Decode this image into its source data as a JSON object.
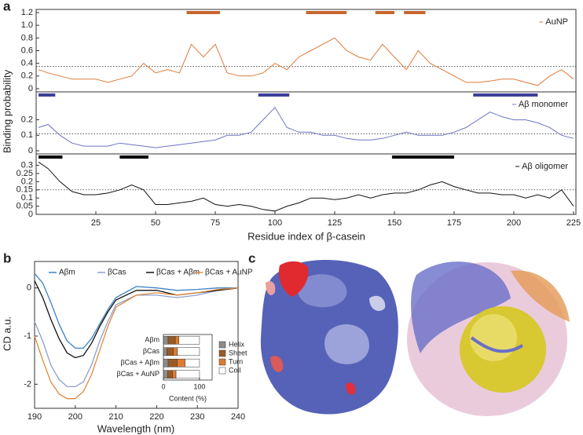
{
  "panel_labels": [
    "a",
    "b",
    "c"
  ],
  "chart_data": [
    {
      "type": "line",
      "ylabel": "Binding probability",
      "x": [
        1,
        5,
        10,
        15,
        20,
        25,
        30,
        35,
        40,
        45,
        50,
        55,
        60,
        65,
        70,
        75,
        80,
        85,
        90,
        95,
        100,
        105,
        110,
        115,
        120,
        125,
        130,
        135,
        140,
        145,
        150,
        155,
        160,
        165,
        170,
        175,
        180,
        185,
        190,
        195,
        200,
        205,
        210,
        215,
        220,
        225
      ],
      "series": [
        {
          "name": "AuNP",
          "color": "#e07b3c",
          "values": [
            0.3,
            0.25,
            0.2,
            0.15,
            0.15,
            0.15,
            0.1,
            0.15,
            0.2,
            0.4,
            0.25,
            0.3,
            0.25,
            0.7,
            0.5,
            0.7,
            0.25,
            0.2,
            0.2,
            0.25,
            0.4,
            0.3,
            0.5,
            0.6,
            0.7,
            0.8,
            0.6,
            0.5,
            0.45,
            0.7,
            0.5,
            0.3,
            0.6,
            0.4,
            0.3,
            0.2,
            0.1,
            0.1,
            0.12,
            0.15,
            0.15,
            0.1,
            0.05,
            0.2,
            0.3,
            0.15
          ]
        }
      ],
      "threshold": 0.35,
      "highlight_color": "#c8652e",
      "highlight_ranges": [
        [
          63,
          77
        ],
        [
          113,
          130
        ],
        [
          142,
          150
        ],
        [
          154,
          163
        ]
      ],
      "xlim": [
        0,
        226
      ],
      "ylim": [
        -0.05,
        1.25
      ],
      "yticks": [
        0,
        0.2,
        0.4,
        0.6,
        0.8,
        {
          "value": 1,
          "label": "1.0"
        },
        1.2
      ]
    },
    {
      "type": "line",
      "x": [
        1,
        5,
        10,
        15,
        20,
        25,
        30,
        35,
        40,
        45,
        50,
        55,
        60,
        65,
        70,
        75,
        80,
        85,
        90,
        95,
        100,
        105,
        110,
        115,
        120,
        125,
        130,
        135,
        140,
        145,
        150,
        155,
        160,
        165,
        170,
        175,
        180,
        185,
        190,
        195,
        200,
        205,
        210,
        215,
        220,
        225
      ],
      "series": [
        {
          "name": "Aβ monomer",
          "color": "#6e74c4",
          "values": [
            0.15,
            0.17,
            0.1,
            0.05,
            0.03,
            0.03,
            0.03,
            0.05,
            0.04,
            0.03,
            0.02,
            0.03,
            0.04,
            0.05,
            0.06,
            0.07,
            0.1,
            0.1,
            0.12,
            0.2,
            0.28,
            0.15,
            0.12,
            0.12,
            0.1,
            0.1,
            0.08,
            0.07,
            0.07,
            0.08,
            0.1,
            0.12,
            0.1,
            0.1,
            0.1,
            0.12,
            0.15,
            0.2,
            0.25,
            0.22,
            0.2,
            0.2,
            0.18,
            0.15,
            0.1,
            0.08
          ]
        }
      ],
      "threshold": 0.11,
      "highlight_color": "#3c3f9a",
      "highlight_ranges": [
        [
          1,
          8
        ],
        [
          93,
          106
        ],
        [
          183,
          210
        ]
      ],
      "xlim": [
        0,
        226
      ],
      "ylim": [
        -0.02,
        0.38
      ],
      "yticks": [
        0,
        0.1,
        0.2
      ]
    },
    {
      "type": "line",
      "xlabel": "Residue index of β-casein",
      "x": [
        1,
        5,
        10,
        15,
        20,
        25,
        30,
        35,
        40,
        45,
        50,
        55,
        60,
        65,
        70,
        75,
        80,
        85,
        90,
        95,
        100,
        105,
        110,
        115,
        120,
        125,
        130,
        135,
        140,
        145,
        150,
        155,
        160,
        165,
        170,
        175,
        180,
        185,
        190,
        195,
        200,
        205,
        210,
        215,
        220,
        225
      ],
      "series": [
        {
          "name": "Aβ oligomer",
          "color": "#111111",
          "values": [
            0.32,
            0.28,
            0.2,
            0.14,
            0.12,
            0.12,
            0.13,
            0.15,
            0.18,
            0.15,
            0.06,
            0.06,
            0.07,
            0.08,
            0.1,
            0.06,
            0.05,
            0.06,
            0.05,
            0.03,
            0.02,
            0.05,
            0.07,
            0.1,
            0.1,
            0.09,
            0.1,
            0.12,
            0.1,
            0.12,
            0.13,
            0.13,
            0.15,
            0.18,
            0.2,
            0.17,
            0.15,
            0.13,
            0.13,
            0.12,
            0.12,
            0.1,
            0.12,
            0.1,
            0.15,
            0.05
          ]
        }
      ],
      "threshold": 0.15,
      "highlight_color": "#000000",
      "highlight_ranges": [
        [
          1,
          11
        ],
        [
          35,
          47
        ],
        [
          149,
          175
        ]
      ],
      "xlim": [
        0,
        226
      ],
      "ylim": [
        0,
        0.37
      ],
      "xticks": [
        25,
        50,
        75,
        100,
        125,
        150,
        175,
        200,
        225
      ],
      "yticks": [
        0,
        0.05,
        0.1,
        0.15,
        0.2,
        0.25,
        0.3
      ]
    },
    {
      "type": "line",
      "xlabel": "Wavelength (nm)",
      "ylabel": "CD a.u.",
      "x": [
        190,
        192,
        194,
        196,
        198,
        200,
        202,
        204,
        206,
        208,
        210,
        215,
        220,
        225,
        230,
        235,
        240
      ],
      "series": [
        {
          "name": "Aβm",
          "color": "#3b82c4",
          "values": [
            0.3,
            0.1,
            -0.3,
            -0.75,
            -1.1,
            -1.25,
            -1.25,
            -1.05,
            -0.75,
            -0.45,
            -0.2,
            0.03,
            0,
            -0.05,
            -0.03,
            0,
            0
          ]
        },
        {
          "name": "βCas",
          "color": "#8d9fcf",
          "values": [
            -0.7,
            -1.1,
            -1.6,
            -1.9,
            -2.05,
            -2.05,
            -1.95,
            -1.6,
            -1.1,
            -0.7,
            -0.35,
            -0.15,
            -0.15,
            -0.2,
            -0.15,
            -0.05,
            0
          ]
        },
        {
          "name": "βCas + Aβm",
          "color": "#111111",
          "values": [
            0.15,
            -0.2,
            -0.65,
            -1.05,
            -1.35,
            -1.45,
            -1.4,
            -1.15,
            -0.8,
            -0.5,
            -0.25,
            -0.05,
            -0.05,
            -0.15,
            -0.1,
            -0.05,
            0
          ]
        },
        {
          "name": "βCas + AuNP",
          "color": "#e08a3c",
          "values": [
            -1,
            -1.5,
            -1.95,
            -2.2,
            -2.3,
            -2.3,
            -2.15,
            -1.8,
            -1.3,
            -0.8,
            -0.4,
            -0.15,
            -0.1,
            -0.15,
            -0.1,
            -0.03,
            0
          ]
        }
      ],
      "xlim": [
        190,
        240
      ],
      "ylim": [
        -2.5,
        0.55
      ],
      "xticks": [
        190,
        200,
        210,
        220,
        230,
        240
      ],
      "yticks": [
        -2,
        -1,
        0
      ]
    },
    {
      "type": "stacked_barh",
      "xlabel": "Content (%)",
      "categories": [
        "Aβm",
        "βCas",
        "βCas + Aβm",
        "βCas + AuNP"
      ],
      "series": [
        {
          "name": "Helix",
          "color": "#8c8c8c",
          "values": [
            13,
            10,
            13,
            12
          ]
        },
        {
          "name": "Sheet",
          "color": "#9a5a25",
          "values": [
            20,
            17,
            25,
            13
          ]
        },
        {
          "name": "Turn",
          "color": "#e07a32",
          "values": [
            10,
            12,
            22,
            10
          ]
        },
        {
          "name": "Coil",
          "color": "#ffffff",
          "values": [
            57,
            61,
            40,
            65
          ]
        }
      ],
      "xlim": [
        0,
        135
      ],
      "xticks": [
        0,
        100
      ]
    }
  ]
}
